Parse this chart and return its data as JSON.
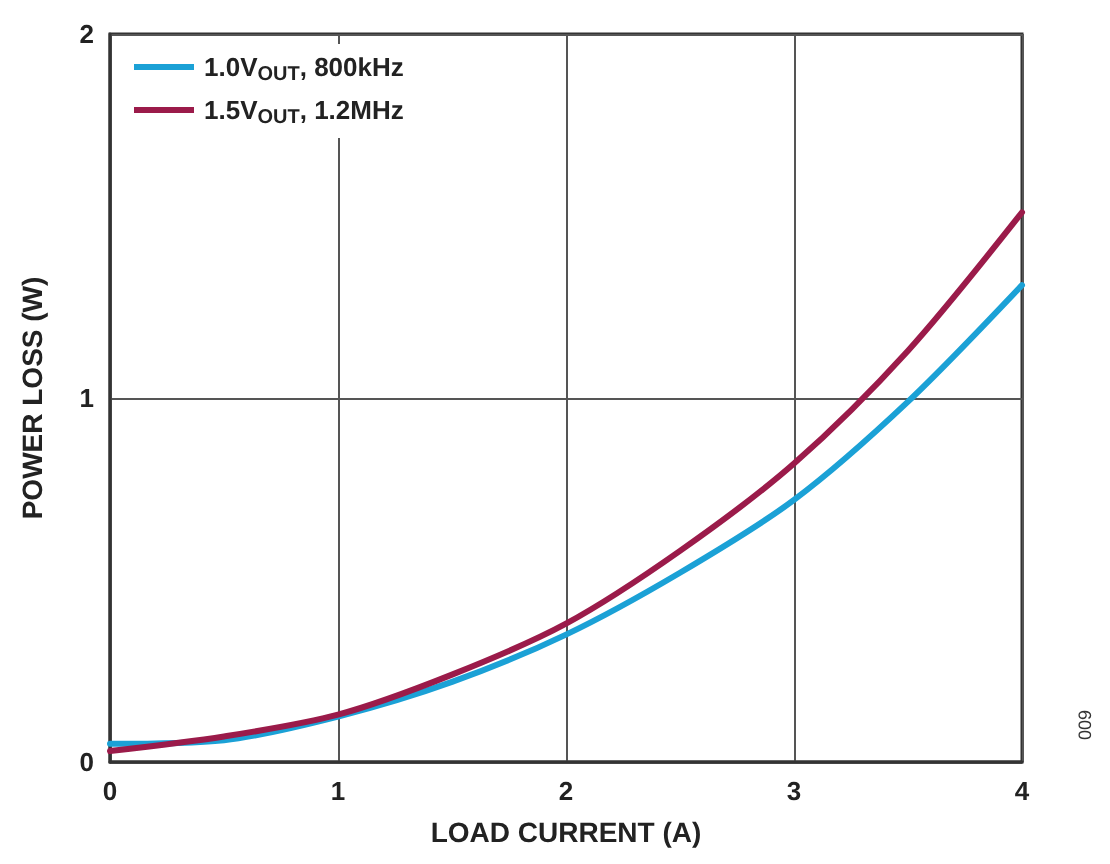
{
  "chart_data": {
    "type": "line",
    "xlabel": "LOAD CURRENT (A)",
    "ylabel": "POWER LOSS (W)",
    "annotations": [
      "009"
    ],
    "x": [
      0,
      0.5,
      1,
      1.5,
      2,
      2.5,
      3,
      3.5,
      4
    ],
    "series": [
      {
        "name": "1.0V$_{OUT}$, 800kHz",
        "color": "#1ba1d6",
        "values": [
          0.05,
          0.06,
          0.125,
          0.22,
          0.35,
          0.52,
          0.72,
          0.99,
          1.31
        ]
      },
      {
        "name": "1.5V$_{OUT}$, 1.2MHz",
        "color": "#9b1b4a",
        "values": [
          0.03,
          0.07,
          0.13,
          0.24,
          0.38,
          0.58,
          0.82,
          1.13,
          1.51
        ]
      }
    ],
    "xlim": [
      0,
      4
    ],
    "xticks": [
      0,
      1,
      2,
      3,
      4
    ],
    "ylim": [
      0,
      2
    ],
    "yticks": [
      0,
      1,
      2
    ],
    "grid": true,
    "legend": "top left",
    "marker": "none",
    "line_style": "solid"
  }
}
